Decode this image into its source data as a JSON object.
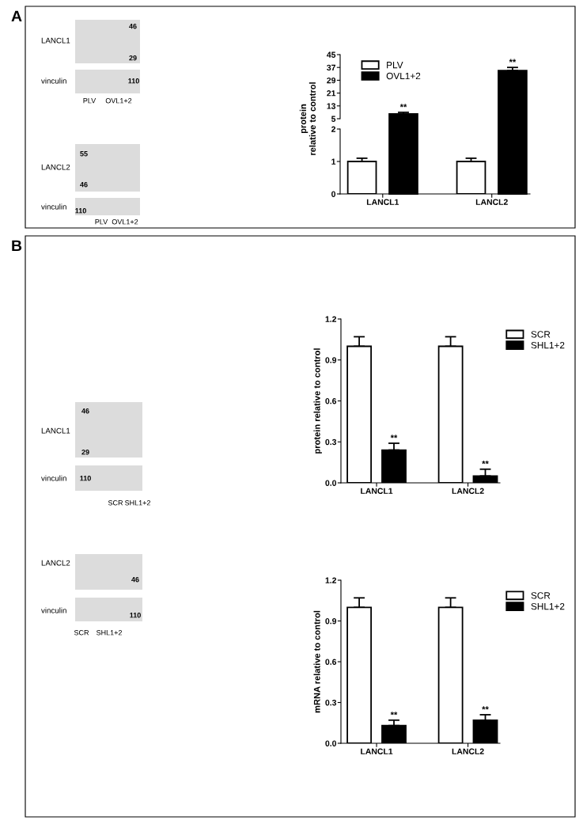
{
  "chart_data": [
    {
      "type": "other",
      "annotations": [
        "A",
        "LANCL1",
        "vinculin",
        "PLV",
        "OVL1+2",
        "46",
        "29",
        "110",
        "LANCL2",
        "vinculin",
        "55",
        "46",
        "110",
        "PLV",
        "OVL1+2"
      ]
    },
    {
      "type": "bar",
      "ylabel": "protein\nrelative to control",
      "series": [
        {
          "name": "PLV",
          "color": "#ffffff",
          "values": [
            null,
            null
          ]
        },
        {
          "name": "OVL1+2",
          "color": "#000000",
          "values": [
            8,
            35
          ],
          "errors": [
            [
              8,
              9
            ],
            [
              35,
              37
            ]
          ]
        }
      ],
      "ylim": [
        5,
        45
      ],
      "yticks": [
        5,
        13,
        21,
        29,
        37,
        45
      ],
      "legend": "top left",
      "tick_labels": "y",
      "annotations": [
        "**",
        "**"
      ]
    },
    {
      "type": "bar",
      "categories": [
        "LANCL1",
        "LANCL2"
      ],
      "series": [
        {
          "color": "#ffffff",
          "values": [
            1,
            1
          ],
          "errors": [
            [
              1,
              1.1
            ],
            [
              1,
              1.1
            ]
          ]
        }
      ],
      "ylim": [
        0,
        2
      ],
      "yticks": [
        0,
        1,
        2
      ]
    },
    {
      "type": "other",
      "annotations": [
        "B",
        "LANCL1",
        "vinculin",
        "46",
        "29",
        "110",
        "SCR",
        "SHL1+2",
        "LANCL2",
        "vinculin",
        "46",
        "110",
        "SCR",
        "SHL1+2"
      ]
    },
    {
      "type": "bar",
      "ylabel": "protein relative to control",
      "categories": [
        "LANCL1",
        "LANCL2"
      ],
      "series": [
        {
          "name": "SCR",
          "color": "#ffffff",
          "values": [
            1.0,
            1.0
          ],
          "errors": [
            [
              1.0,
              1.07
            ],
            [
              1.0,
              1.07
            ]
          ]
        },
        {
          "name": "SHL1+2",
          "color": "#000000",
          "values": [
            0.24,
            0.05
          ],
          "errors": [
            [
              0.24,
              0.29
            ],
            [
              0.05,
              0.1
            ]
          ]
        }
      ],
      "ylim": [
        0,
        1.2
      ],
      "yticks": [
        {
          "value": 0,
          "label": "0.0"
        },
        0.3,
        0.6,
        0.9,
        1.2
      ],
      "legend": "top right",
      "annotations": [
        "**",
        "**"
      ]
    },
    {
      "type": "bar",
      "ylabel": "mRNA relative to control",
      "categories": [
        "LANCL1",
        "LANCL2"
      ],
      "series": [
        {
          "name": "SCR",
          "color": "#ffffff",
          "values": [
            1.0,
            1.0
          ],
          "errors": [
            [
              1.0,
              1.07
            ],
            [
              1.0,
              1.07
            ]
          ]
        },
        {
          "name": "SHL1+2",
          "color": "#000000",
          "values": [
            0.13,
            0.17
          ],
          "errors": [
            [
              0.13,
              0.17
            ],
            [
              0.17,
              0.21
            ]
          ]
        }
      ],
      "ylim": [
        0,
        1.2
      ],
      "yticks": [
        {
          "value": 0,
          "label": "0.0"
        },
        0.3,
        0.6,
        0.9,
        1.2
      ],
      "legend": "top right",
      "annotations": [
        "**",
        "**"
      ]
    }
  ]
}
